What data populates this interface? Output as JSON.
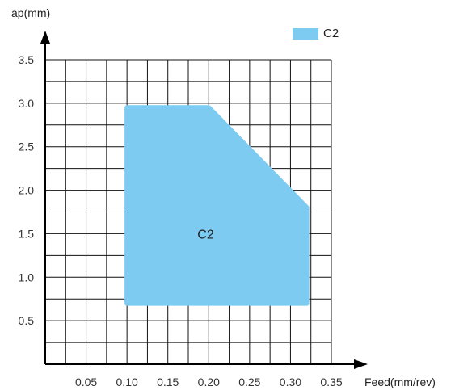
{
  "chart_data": {
    "type": "area",
    "xlabel": "Feed(mm/rev)",
    "ylabel": "ap(mm)",
    "xlim": [
      0,
      0.35
    ],
    "ylim": [
      0,
      3.75
    ],
    "x_ticks": [
      0.05,
      0.1,
      0.15,
      0.2,
      0.25,
      0.3,
      0.35
    ],
    "x_tick_labels": [
      "0.05",
      "0.10",
      "0.15",
      "0.20",
      "0.25",
      "0.30",
      "0.35"
    ],
    "y_ticks": [
      0.5,
      1.0,
      1.5,
      2.0,
      2.5,
      3.0,
      3.5
    ],
    "y_tick_labels": [
      "0.5",
      "1.0",
      "1.5",
      "2.0",
      "2.5",
      "3.0",
      "3.5"
    ],
    "grid": true,
    "legend": "top-right",
    "series": [
      {
        "name": "C2",
        "label": "C2",
        "color": "#7ecbf2",
        "polygon": [
          {
            "x": 0.1,
            "y": 0.7
          },
          {
            "x": 0.1,
            "y": 2.95
          },
          {
            "x": 0.2,
            "y": 2.95
          },
          {
            "x": 0.32,
            "y": 1.8
          },
          {
            "x": 0.32,
            "y": 0.7
          }
        ]
      }
    ]
  }
}
